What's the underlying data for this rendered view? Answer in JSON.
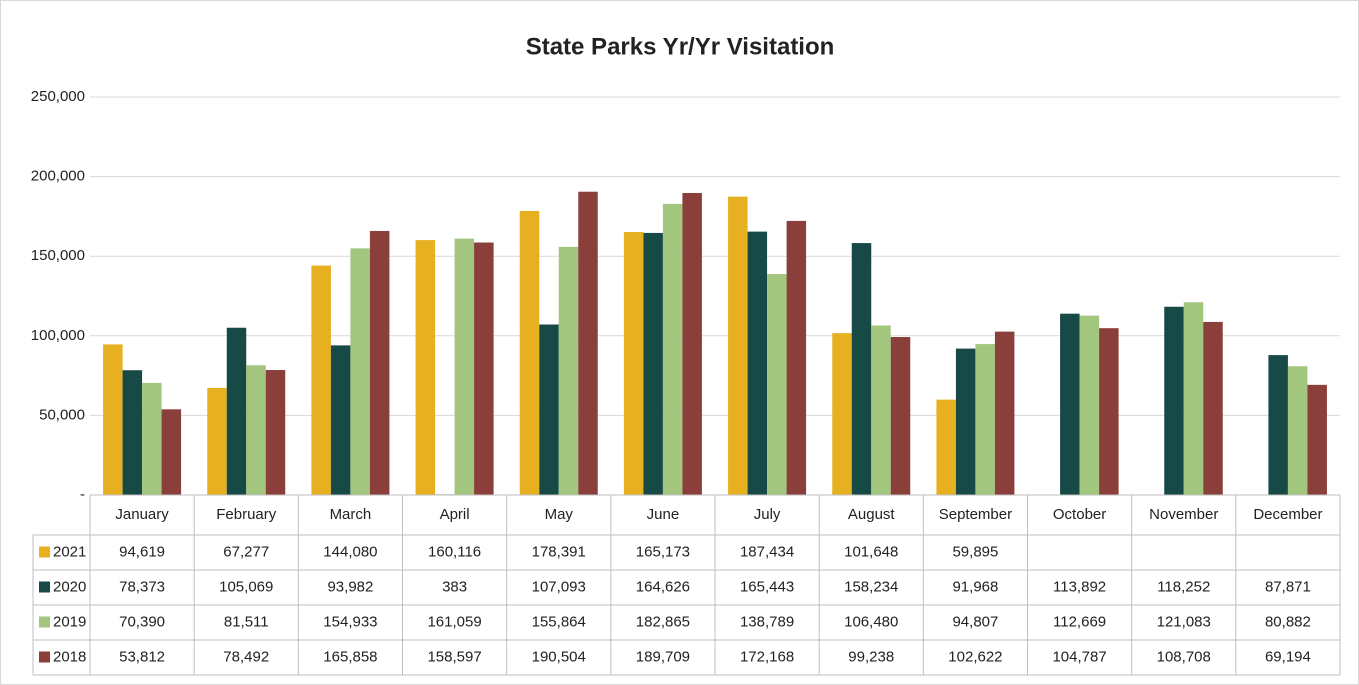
{
  "chart_data": {
    "type": "bar",
    "title": "State Parks Yr/Yr Visitation",
    "categories": [
      "January",
      "February",
      "March",
      "April",
      "May",
      "June",
      "July",
      "August",
      "September",
      "October",
      "November",
      "December"
    ],
    "series": [
      {
        "name": "2021",
        "color": "#e6b020",
        "values": [
          94619,
          67277,
          144080,
          160116,
          178391,
          165173,
          187434,
          101648,
          59895,
          null,
          null,
          null
        ],
        "value_labels": [
          "94,619",
          "67,277",
          "144,080",
          "160,116",
          "178,391",
          "165,173",
          "187,434",
          "101,648",
          "59,895",
          null,
          null,
          null
        ]
      },
      {
        "name": "2020",
        "color": "#174a47",
        "values": [
          78373,
          105069,
          93982,
          383,
          107093,
          164626,
          165443,
          158234,
          91968,
          113892,
          118252,
          87871
        ],
        "value_labels": [
          "78,373",
          "105,069",
          "93,982",
          "383",
          "107,093",
          "164,626",
          "165,443",
          "158,234",
          "91,968",
          "113,892",
          "118,252",
          "87,871"
        ]
      },
      {
        "name": "2019",
        "color": "#a3c67e",
        "values": [
          70390,
          81511,
          154933,
          161059,
          155864,
          182865,
          138789,
          106480,
          94807,
          112669,
          121083,
          80882
        ],
        "value_labels": [
          "70,390",
          "81,511",
          "154,933",
          "161,059",
          "155,864",
          "182,865",
          "138,789",
          "106,480",
          "94,807",
          "112,669",
          "121,083",
          "80,882"
        ]
      },
      {
        "name": "2018",
        "color": "#8b3f3a",
        "values": [
          53812,
          78492,
          165858,
          158597,
          190504,
          189709,
          172168,
          99238,
          102622,
          104787,
          108708,
          69194
        ],
        "value_labels": [
          "53,812",
          "78,492",
          "165,858",
          "158,597",
          "190,504",
          "189,709",
          "172,168",
          "99,238",
          "102,622",
          "104,787",
          "108,708",
          "69,194"
        ]
      }
    ],
    "ylim": [
      0,
      250000
    ],
    "yticks": [
      {
        "value": 0,
        "label": "-"
      },
      {
        "value": 50000,
        "label": "50,000"
      },
      {
        "value": 100000,
        "label": "100,000"
      },
      {
        "value": 150000,
        "label": "150,000"
      },
      {
        "value": 200000,
        "label": "200,000"
      },
      {
        "value": 250000,
        "label": "250,000"
      }
    ],
    "grid": true
  }
}
